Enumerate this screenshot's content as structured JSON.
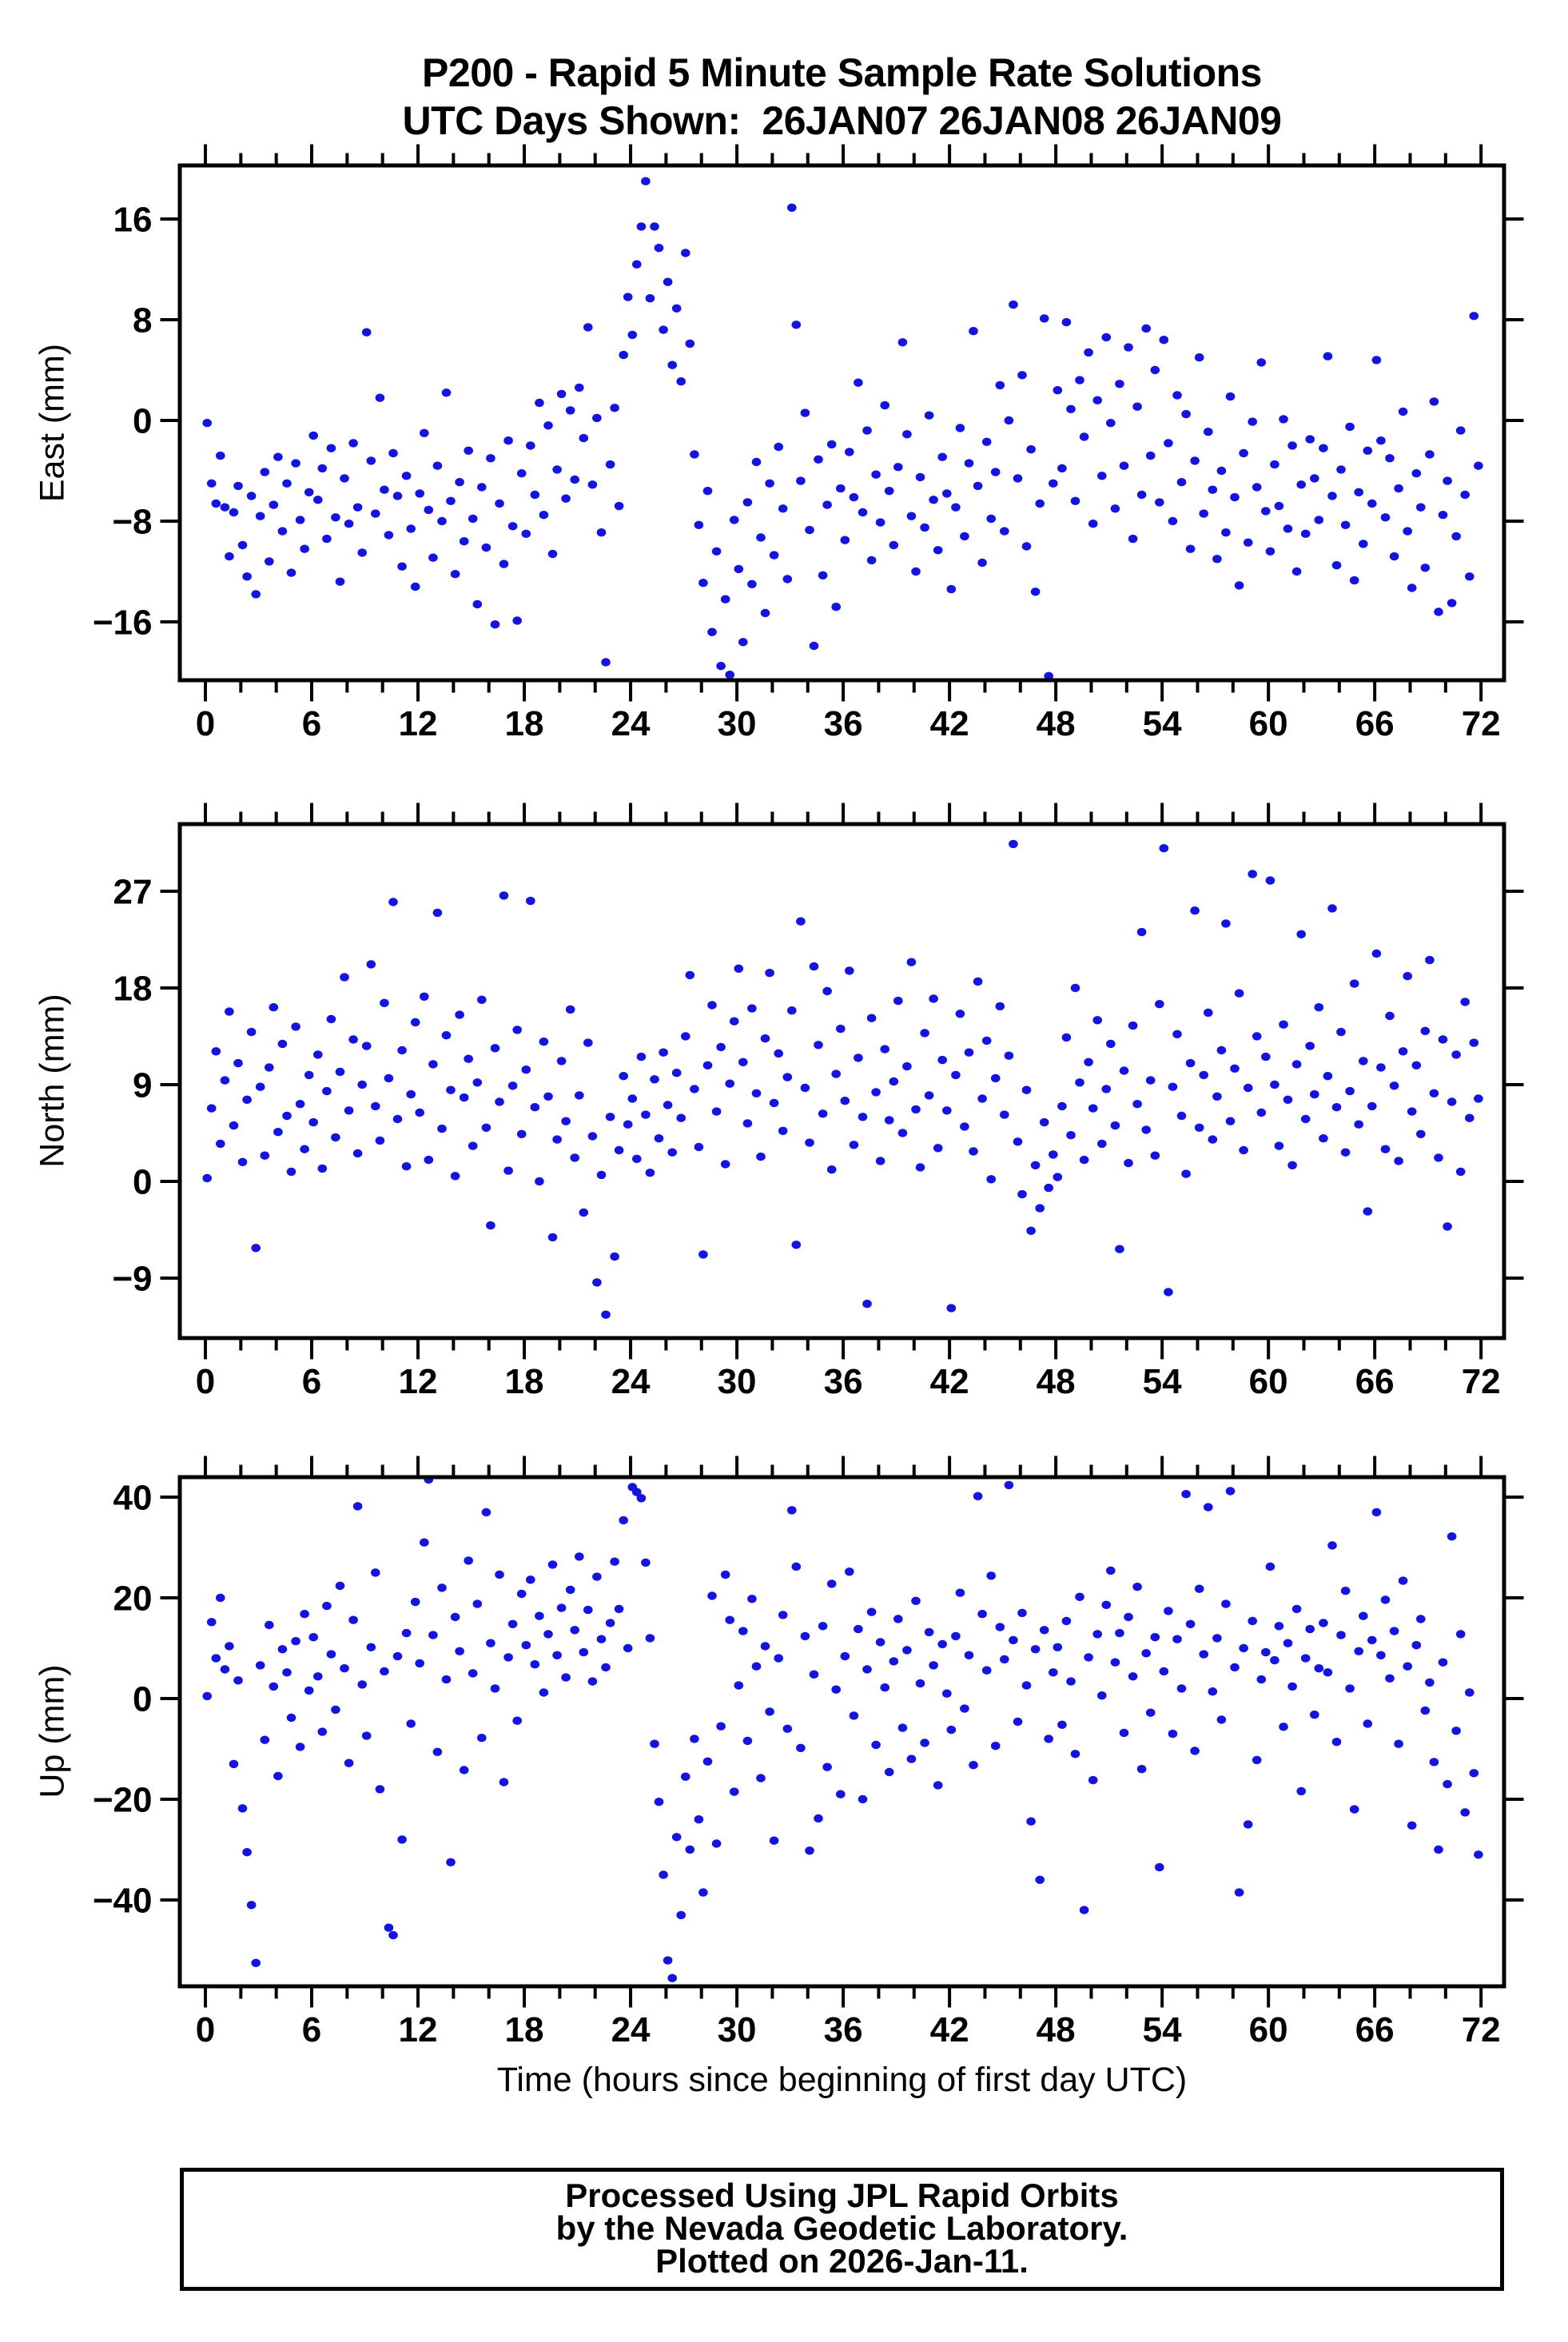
{
  "title": {
    "line1": "P200 - Rapid 5 Minute Sample Rate Solutions",
    "line2": "UTC Days Shown:  26JAN07 26JAN08 26JAN09"
  },
  "footer": {
    "line1": "Processed Using JPL Rapid Orbits",
    "line2": "by the Nevada Geodetic Laboratory.",
    "line3": "Plotted on 2026-Jan-11."
  },
  "chart_data": {
    "type": "scatter",
    "title": "P200 - Rapid 5 Minute Sample Rate Solutions",
    "subtitle": "UTC Days Shown:  26JAN07 26JAN08 26JAN09",
    "marker": {
      "color": "#1414e0",
      "rx": 5.8,
      "ry": 5.2
    },
    "xaxis": {
      "title": "Time (hours since beginning of first day UTC)",
      "lim": [
        -1.443,
        73.3
      ],
      "ticks": [
        0,
        6,
        12,
        18,
        24,
        30,
        36,
        42,
        48,
        54,
        60,
        66,
        72
      ],
      "major_step": 6,
      "minor_step": 2,
      "minor_from": 0,
      "minor_to": 72,
      "grid": false
    },
    "x": {
      "start": 0.1,
      "step": 0.25,
      "count": 288,
      "unit": "hours"
    },
    "panels": [
      {
        "id": "east",
        "ylabel": "East (mm)",
        "yticks": [
          -16,
          -8,
          0,
          8,
          16
        ],
        "ylim": [
          -20.63,
          20.25
        ],
        "y": [
          -0.2,
          -5.0,
          -6.6,
          -2.8,
          -6.9,
          -10.8,
          -7.3,
          -5.2,
          -9.9,
          -12.4,
          -6.0,
          -13.8,
          -7.6,
          -4.1,
          -11.2,
          -6.7,
          -2.9,
          -8.8,
          -5.0,
          -12.1,
          -3.4,
          -7.9,
          -10.2,
          -5.7,
          -1.2,
          -6.3,
          -3.8,
          -9.4,
          -2.2,
          -7.7,
          -12.8,
          -4.6,
          -8.2,
          -1.8,
          -6.9,
          -10.5,
          7.0,
          -3.2,
          -7.4,
          1.8,
          -5.5,
          -9.1,
          -2.6,
          -6.0,
          -11.6,
          -4.4,
          -8.6,
          -13.2,
          -5.8,
          -1.0,
          -7.1,
          -10.9,
          -3.6,
          -8.0,
          2.2,
          -6.4,
          -12.2,
          -4.9,
          -9.6,
          -2.4,
          -7.8,
          -14.6,
          -5.3,
          -10.1,
          -3.0,
          -16.2,
          -6.6,
          -11.4,
          -1.6,
          -8.4,
          -15.9,
          -4.2,
          -9.0,
          -2.0,
          -5.9,
          1.4,
          -7.5,
          -0.4,
          -10.6,
          -3.9,
          2.1,
          -6.2,
          0.8,
          -4.7,
          2.6,
          -1.4,
          7.4,
          -5.1,
          0.2,
          -8.9,
          -19.2,
          -3.5,
          1.0,
          -6.8,
          5.2,
          9.8,
          6.8,
          12.4,
          15.4,
          19.0,
          9.7,
          15.4,
          13.7,
          7.2,
          11.0,
          4.4,
          8.9,
          3.1,
          13.3,
          6.1,
          -2.7,
          -8.3,
          -12.9,
          -5.6,
          -16.8,
          -10.4,
          -19.5,
          -14.2,
          -20.2,
          -7.9,
          -11.8,
          -17.6,
          -6.5,
          -13.0,
          -3.3,
          -9.3,
          -15.3,
          -5.0,
          -10.7,
          -2.1,
          -7.0,
          -12.6,
          16.9,
          7.6,
          -4.8,
          0.6,
          -8.7,
          -17.9,
          -3.1,
          -12.3,
          -6.7,
          -1.9,
          -14.8,
          -5.4,
          -9.5,
          -2.5,
          -6.1,
          3.0,
          -7.3,
          -0.8,
          -11.1,
          -4.3,
          -8.1,
          1.2,
          -5.6,
          -9.9,
          -3.7,
          6.2,
          -1.1,
          -7.6,
          -12.0,
          -4.5,
          -8.5,
          0.4,
          -6.3,
          -10.3,
          -2.9,
          -5.8,
          -13.4,
          -6.9,
          -0.6,
          -9.2,
          -3.4,
          7.1,
          -5.2,
          -11.3,
          -1.7,
          -7.8,
          -4.1,
          2.8,
          -8.8,
          0.0,
          9.2,
          -4.6,
          3.6,
          -10.0,
          -2.3,
          -13.6,
          -6.6,
          8.1,
          -20.3,
          -5.0,
          2.4,
          -3.8,
          7.8,
          0.9,
          -6.4,
          3.2,
          -1.3,
          5.4,
          -8.2,
          1.6,
          -4.4,
          6.6,
          -0.2,
          -7.0,
          2.9,
          -3.6,
          5.8,
          -9.4,
          1.1,
          -5.9,
          7.3,
          -2.8,
          4.0,
          -6.5,
          6.4,
          -1.8,
          -8.0,
          2.0,
          -4.9,
          0.5,
          -10.2,
          -3.2,
          5.0,
          -7.4,
          -0.9,
          -5.5,
          -11.0,
          -4.0,
          -8.9,
          1.9,
          -6.1,
          -13.1,
          -2.6,
          -9.7,
          -0.1,
          -5.3,
          4.6,
          -7.2,
          -10.4,
          -3.5,
          -6.8,
          0.1,
          -8.6,
          -2.0,
          -12.0,
          -5.1,
          -9.0,
          -1.5,
          -4.6,
          -7.9,
          -2.2,
          5.1,
          -6.0,
          -11.5,
          -3.9,
          -8.3,
          -0.5,
          -12.7,
          -5.7,
          -9.8,
          -2.4,
          -6.6,
          4.8,
          -1.6,
          -7.7,
          -3.0,
          -10.8,
          -5.4,
          0.7,
          -8.8,
          -13.3,
          -4.2,
          -6.9,
          -11.7,
          -2.7,
          1.5,
          -15.2,
          -7.5,
          -4.8,
          -14.5,
          -9.2,
          -0.8,
          -5.9,
          -12.4,
          8.3,
          -3.6
        ]
      },
      {
        "id": "north",
        "ylabel": "North (mm)",
        "yticks": [
          -9,
          0,
          9,
          18,
          27
        ],
        "ylim": [
          -14.58,
          33.25
        ],
        "y": [
          0.3,
          6.8,
          12.1,
          3.5,
          9.4,
          15.8,
          5.2,
          11.0,
          1.8,
          7.6,
          13.9,
          -6.2,
          8.8,
          2.4,
          10.6,
          16.2,
          4.6,
          12.8,
          6.1,
          0.9,
          14.4,
          7.2,
          3.0,
          9.9,
          5.5,
          11.8,
          1.2,
          8.4,
          15.1,
          4.1,
          10.2,
          19.0,
          6.6,
          13.2,
          2.6,
          9.0,
          12.6,
          20.2,
          7.0,
          3.8,
          16.6,
          9.6,
          26.0,
          5.8,
          12.2,
          1.4,
          8.1,
          14.8,
          6.4,
          17.2,
          2.0,
          10.9,
          25.0,
          4.9,
          13.6,
          8.5,
          0.5,
          15.5,
          7.8,
          11.4,
          3.3,
          9.2,
          16.9,
          5.0,
          -4.1,
          12.4,
          7.4,
          26.6,
          1.0,
          8.9,
          14.1,
          4.4,
          10.4,
          26.1,
          6.9,
          0.0,
          13.0,
          7.9,
          -5.2,
          3.9,
          11.2,
          5.6,
          16.0,
          2.2,
          8.0,
          -2.9,
          12.9,
          4.2,
          -9.4,
          0.6,
          -12.4,
          6.0,
          -7.0,
          2.9,
          9.8,
          5.3,
          7.7,
          2.1,
          11.6,
          6.2,
          0.8,
          9.5,
          4.0,
          12.0,
          7.1,
          2.7,
          10.1,
          5.9,
          13.5,
          19.2,
          8.6,
          3.2,
          -6.8,
          10.8,
          16.4,
          6.5,
          12.5,
          1.6,
          9.1,
          14.9,
          19.8,
          11.1,
          5.4,
          16.1,
          8.2,
          2.3,
          13.3,
          19.4,
          7.3,
          11.9,
          4.7,
          9.7,
          15.9,
          -5.9,
          24.2,
          8.7,
          3.6,
          20.0,
          12.7,
          6.3,
          17.7,
          1.1,
          10.0,
          14.2,
          7.5,
          19.6,
          3.4,
          11.5,
          6.0,
          -11.4,
          15.2,
          8.3,
          1.9,
          12.3,
          5.7,
          9.3,
          16.8,
          4.5,
          10.7,
          20.4,
          6.7,
          1.3,
          13.8,
          8.0,
          17.0,
          3.1,
          11.3,
          6.6,
          -11.8,
          9.9,
          15.6,
          5.1,
          12.0,
          2.8,
          18.6,
          7.7,
          13.1,
          0.2,
          9.6,
          16.3,
          6.2,
          11.7,
          31.4,
          3.7,
          -1.2,
          8.5,
          -4.6,
          1.5,
          -2.5,
          5.5,
          -0.6,
          2.5,
          0.4,
          7.0,
          13.4,
          4.3,
          18.0,
          9.2,
          2.0,
          11.1,
          6.8,
          15.0,
          3.5,
          8.6,
          12.8,
          5.2,
          -6.3,
          10.3,
          1.7,
          14.5,
          7.2,
          23.2,
          4.8,
          9.4,
          2.4,
          16.5,
          31.0,
          -10.3,
          8.8,
          13.7,
          6.1,
          0.7,
          11.0,
          25.2,
          5.0,
          9.9,
          15.7,
          3.9,
          7.9,
          12.2,
          24.0,
          5.6,
          10.5,
          17.5,
          2.9,
          8.7,
          28.6,
          13.5,
          6.4,
          11.6,
          28.0,
          9.0,
          3.3,
          14.6,
          7.6,
          1.5,
          10.9,
          23.0,
          5.8,
          12.6,
          8.1,
          16.2,
          4.0,
          9.8,
          25.4,
          6.9,
          13.9,
          2.7,
          8.4,
          18.4,
          5.3,
          11.2,
          -2.8,
          7.0,
          21.2,
          10.6,
          3.0,
          15.4,
          8.9,
          1.9,
          12.1,
          19.1,
          6.5,
          10.8,
          4.4,
          14.0,
          20.6,
          8.2,
          2.2,
          13.2,
          -4.2,
          7.4,
          11.8,
          0.9,
          16.7,
          5.9,
          12.9,
          7.7
        ]
      },
      {
        "id": "up",
        "ylabel": "Up (mm)",
        "yticks": [
          -40,
          -20,
          0,
          20,
          40
        ],
        "ylim": [
          -57.14,
          43.97
        ],
        "y": [
          0.5,
          15.2,
          8.0,
          20.0,
          5.8,
          10.4,
          -13.0,
          3.6,
          -21.8,
          -30.5,
          -41.0,
          -52.5,
          6.6,
          -8.2,
          14.6,
          2.4,
          -15.4,
          9.8,
          5.2,
          -3.8,
          11.4,
          -9.6,
          16.8,
          1.6,
          12.2,
          4.4,
          -6.6,
          18.4,
          8.8,
          -2.2,
          22.4,
          6.0,
          -12.8,
          15.6,
          38.2,
          2.8,
          -7.4,
          10.2,
          25.0,
          -18.0,
          5.4,
          -45.5,
          -47.0,
          8.4,
          -28.0,
          13.0,
          -5.0,
          19.2,
          7.0,
          31.0,
          43.5,
          12.6,
          -10.6,
          22.0,
          3.8,
          -32.5,
          16.2,
          9.4,
          -14.2,
          27.4,
          5.0,
          18.8,
          -7.8,
          37.0,
          11.0,
          2.0,
          24.6,
          -16.6,
          8.2,
          14.8,
          -4.4,
          20.8,
          10.6,
          23.6,
          6.8,
          16.4,
          1.2,
          12.8,
          26.6,
          8.6,
          18.0,
          4.2,
          21.6,
          13.6,
          28.2,
          9.2,
          17.6,
          3.4,
          24.2,
          11.8,
          6.2,
          15.0,
          27.2,
          17.8,
          35.4,
          10.0,
          42.0,
          41.0,
          39.8,
          27.0,
          12.0,
          -9.0,
          -20.5,
          -35.0,
          -52.0,
          -55.5,
          -27.5,
          -43.0,
          -15.5,
          -30.0,
          -8.0,
          -24.0,
          -38.5,
          -12.5,
          20.4,
          -28.8,
          -5.5,
          24.6,
          15.6,
          -18.5,
          2.6,
          13.4,
          -8.4,
          19.8,
          6.4,
          -15.8,
          10.4,
          -2.6,
          -28.2,
          8.0,
          16.6,
          -6.0,
          37.4,
          26.2,
          -9.8,
          12.4,
          -30.2,
          4.8,
          -23.8,
          14.4,
          -13.6,
          22.8,
          1.8,
          -19.0,
          8.4,
          25.2,
          -3.4,
          13.8,
          -20.0,
          5.8,
          17.2,
          -9.2,
          11.2,
          2.2,
          -14.6,
          7.4,
          15.8,
          -5.8,
          9.6,
          -12.0,
          19.4,
          3.0,
          -8.8,
          13.2,
          6.6,
          -17.2,
          10.8,
          1.0,
          -6.2,
          12.4,
          21.0,
          -2.0,
          8.6,
          -13.2,
          40.2,
          16.8,
          5.6,
          24.4,
          -9.4,
          14.2,
          7.8,
          42.4,
          11.6,
          -4.6,
          17.0,
          2.6,
          -24.4,
          9.8,
          -36.0,
          13.6,
          -8.0,
          5.2,
          10.2,
          -5.2,
          15.4,
          3.4,
          -11.0,
          20.2,
          -42.0,
          8.2,
          -16.2,
          12.8,
          0.6,
          18.6,
          25.4,
          7.2,
          13.0,
          -6.8,
          16.2,
          4.4,
          22.2,
          -14.0,
          9.0,
          -2.8,
          12.2,
          -33.5,
          5.4,
          17.4,
          -7.0,
          11.8,
          2.0,
          40.6,
          14.8,
          -10.4,
          21.8,
          8.8,
          38.0,
          1.4,
          12.0,
          -4.2,
          18.8,
          41.2,
          6.2,
          -38.5,
          10.0,
          -25.0,
          15.4,
          -12.2,
          3.8,
          9.2,
          26.2,
          7.6,
          14.4,
          -5.6,
          11.0,
          2.4,
          17.8,
          -18.4,
          8.0,
          13.8,
          -3.2,
          6.0,
          15.0,
          5.2,
          30.4,
          -8.6,
          12.6,
          21.4,
          2.0,
          -22.0,
          9.4,
          16.4,
          -5.0,
          11.6,
          37.0,
          8.6,
          19.6,
          4.0,
          13.4,
          -9.0,
          23.4,
          6.4,
          -25.2,
          10.6,
          15.8,
          -2.4,
          3.2,
          -12.6,
          -30.0,
          7.2,
          -17.0,
          32.2,
          -6.4,
          12.8,
          -22.6,
          1.2,
          -14.8,
          -31.0
        ]
      }
    ]
  }
}
